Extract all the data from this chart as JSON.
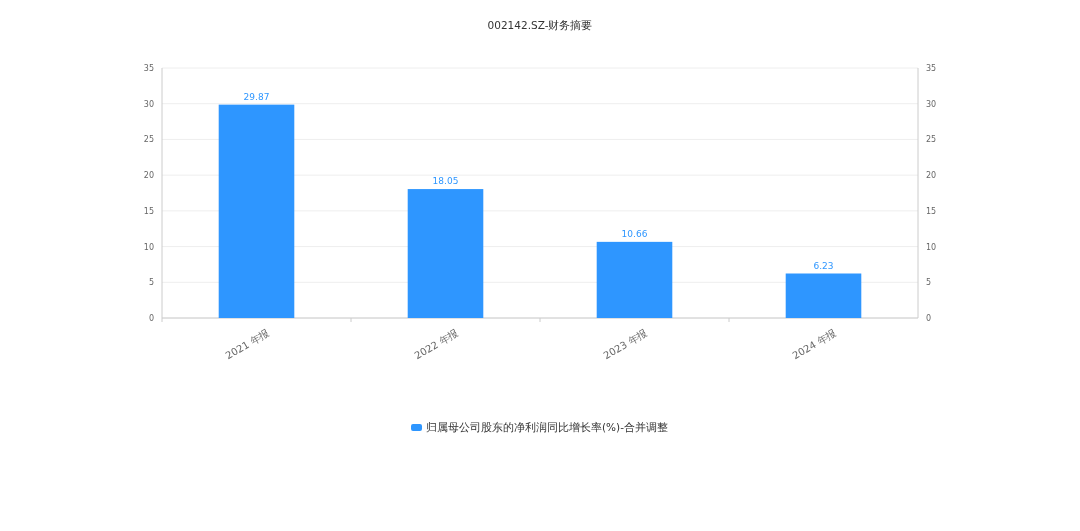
{
  "chart_data": {
    "type": "bar",
    "title": "002142.SZ-财务摘要",
    "categories": [
      "2021 年报",
      "2022 年报",
      "2023 年报",
      "2024 年报"
    ],
    "series": [
      {
        "name": "归属母公司股东的净利润同比增长率(%)-合并调整",
        "color": "#2e96ff",
        "values": [
          29.87,
          18.05,
          10.66,
          6.23
        ]
      }
    ],
    "ylim": [
      0,
      35
    ],
    "yticks": [
      0,
      5,
      10,
      15,
      20,
      25,
      30,
      35
    ],
    "y2lim": [
      0,
      35
    ],
    "y2ticks": [
      0,
      5,
      10,
      15,
      20,
      25,
      30,
      35
    ],
    "grid": "y",
    "legend": "bottom",
    "data_labels": true
  }
}
